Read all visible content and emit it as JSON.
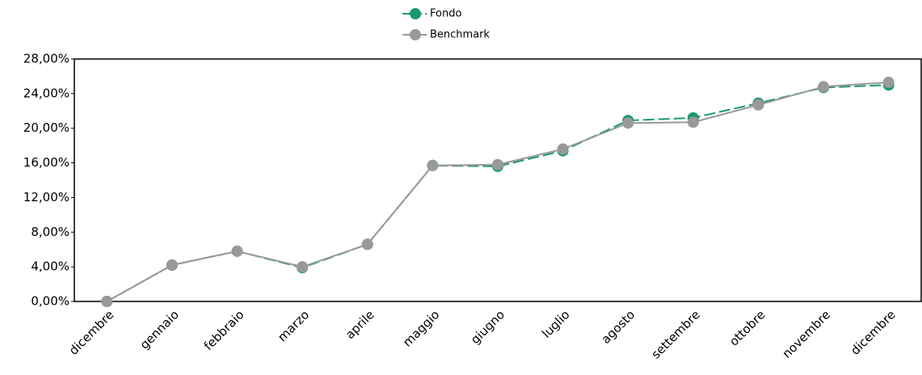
{
  "chart_data": {
    "type": "line",
    "categories": [
      "dicembre",
      "gennaio",
      "febbraio",
      "marzo",
      "aprile",
      "maggio",
      "giugno",
      "luglio",
      "agosto",
      "settembre",
      "ottobre",
      "novembre",
      "dicembre"
    ],
    "series": [
      {
        "name": "Fondo",
        "color": "#1a9a6c",
        "dashed": true,
        "values": [
          0,
          4.2,
          5.8,
          3.9,
          6.6,
          15.7,
          15.6,
          17.4,
          20.9,
          21.2,
          22.9,
          24.7,
          25.0
        ]
      },
      {
        "name": "Benchmark",
        "color": "#999999",
        "dashed": false,
        "values": [
          0,
          4.2,
          5.8,
          4.0,
          6.6,
          15.7,
          15.8,
          17.6,
          20.6,
          20.7,
          22.7,
          24.8,
          25.3
        ]
      }
    ],
    "ylim": [
      0,
      28
    ],
    "yticks": [
      {
        "value": 0,
        "label": "0,00%"
      },
      {
        "value": 4,
        "label": "4,00%"
      },
      {
        "value": 8,
        "label": "8,00%"
      },
      {
        "value": 12,
        "label": "12,00%"
      },
      {
        "value": 16,
        "label": "16,00%"
      },
      {
        "value": 20,
        "label": "20,00%"
      },
      {
        "value": 24,
        "label": "24,00%"
      },
      {
        "value": 28,
        "label": "28,00%"
      }
    ],
    "grid": false,
    "legend": "top"
  }
}
